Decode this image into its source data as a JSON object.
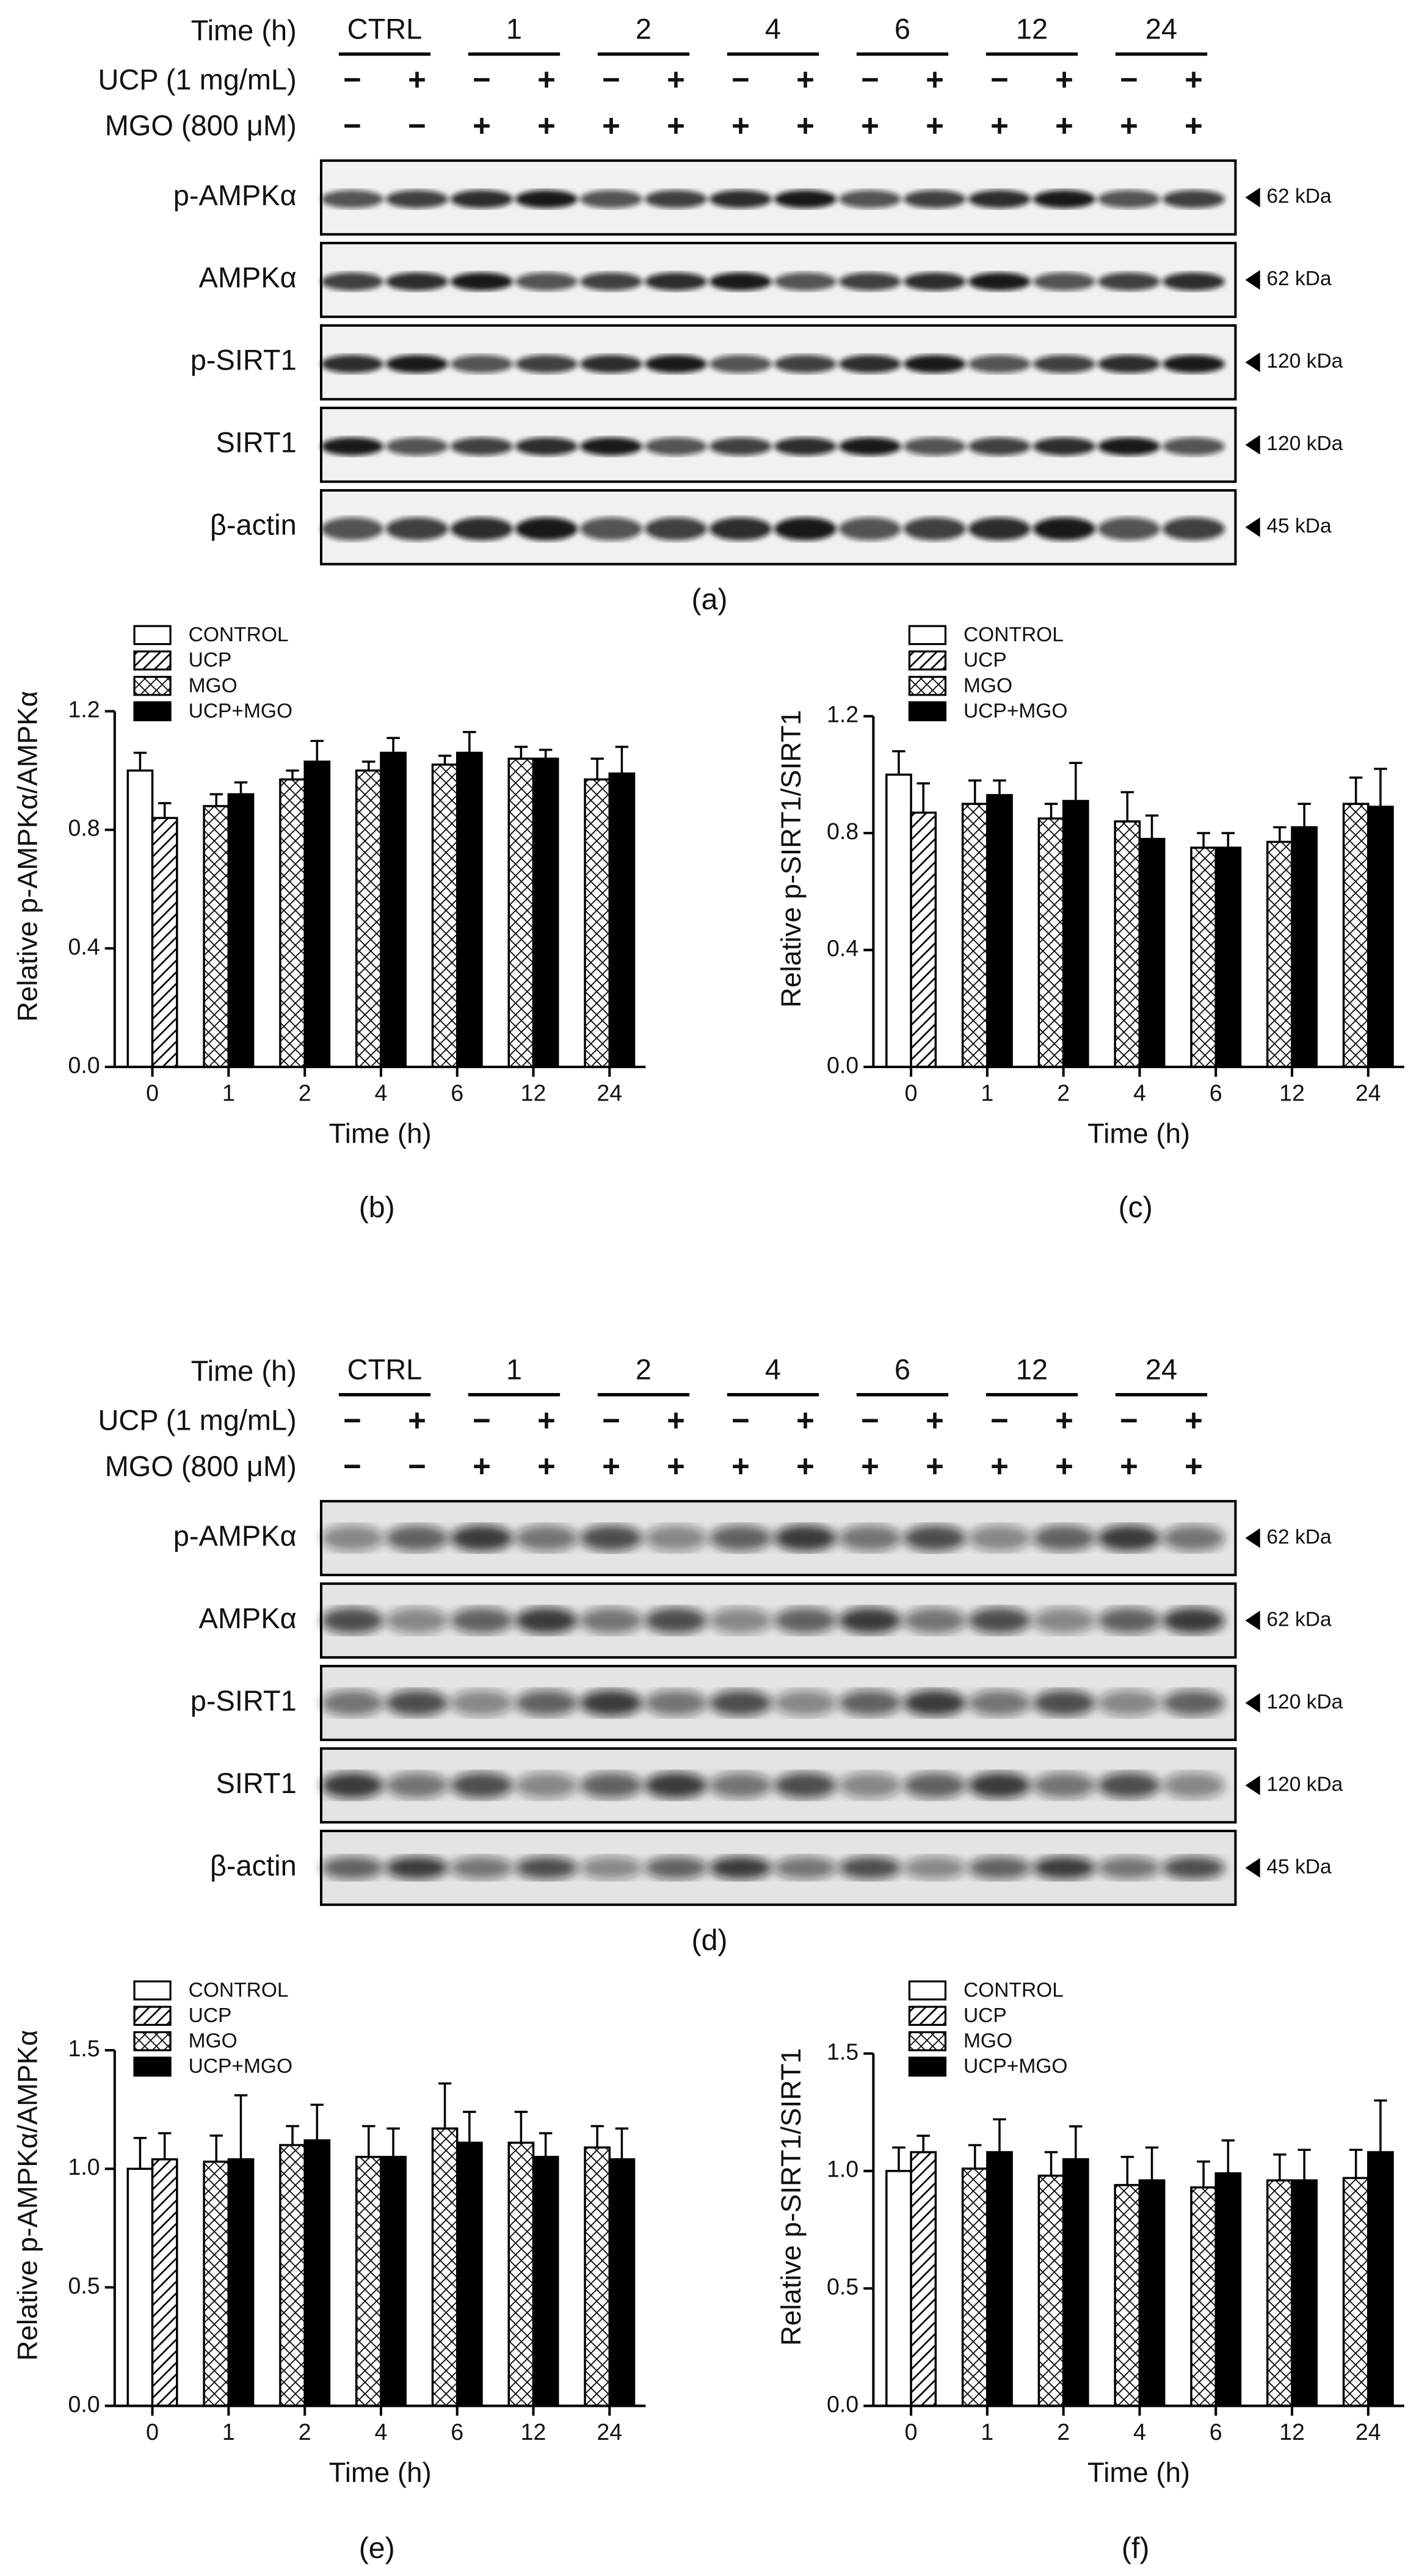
{
  "blots": [
    {
      "caption": "(a)",
      "time_label": "Time (h)",
      "groups": [
        "CTRL",
        "1",
        "2",
        "4",
        "6",
        "12",
        "24"
      ],
      "ucp_label": "UCP (1 mg/mL)",
      "ucp_signs": [
        "−",
        "+",
        "−",
        "+",
        "−",
        "+",
        "−",
        "+",
        "−",
        "+",
        "−",
        "+",
        "−",
        "+"
      ],
      "mgo_label": "MGO (800 μM)",
      "mgo_signs": [
        "−",
        "−",
        "+",
        "+",
        "+",
        "+",
        "+",
        "+",
        "+",
        "+",
        "+",
        "+",
        "+",
        "+"
      ],
      "rows": [
        {
          "protein": "p-AMPKα",
          "size": "62 kDa"
        },
        {
          "protein": "AMPKα",
          "size": "62 kDa"
        },
        {
          "protein": "p-SIRT1",
          "size": "120 kDa"
        },
        {
          "protein": "SIRT1",
          "size": "120 kDa"
        },
        {
          "protein": "β-actin",
          "size": "45 kDa"
        }
      ]
    },
    {
      "caption": "(d)",
      "time_label": "Time (h)",
      "groups": [
        "CTRL",
        "1",
        "2",
        "4",
        "6",
        "12",
        "24"
      ],
      "ucp_label": "UCP (1 mg/mL)",
      "ucp_signs": [
        "−",
        "+",
        "−",
        "+",
        "−",
        "+",
        "−",
        "+",
        "−",
        "+",
        "−",
        "+",
        "−",
        "+"
      ],
      "mgo_label": "MGO (800 μM)",
      "mgo_signs": [
        "−",
        "−",
        "+",
        "+",
        "+",
        "+",
        "+",
        "+",
        "+",
        "+",
        "+",
        "+",
        "+",
        "+"
      ],
      "rows": [
        {
          "protein": "p-AMPKα",
          "size": "62 kDa"
        },
        {
          "protein": "AMPKα",
          "size": "62 kDa"
        },
        {
          "protein": "p-SIRT1",
          "size": "120 kDa"
        },
        {
          "protein": "SIRT1",
          "size": "120 kDa"
        },
        {
          "protein": "β-actin",
          "size": "45 kDa"
        }
      ]
    }
  ],
  "chart_data": [
    {
      "type": "bar",
      "caption": "(b)",
      "x_label": "Time (h)",
      "y_label": "Relative p-AMPKα/AMPKα",
      "categories": [
        "0",
        "1",
        "2",
        "4",
        "6",
        "12",
        "24"
      ],
      "ylim": [
        0,
        1.2
      ],
      "yticks": [
        {
          "value": 0,
          "label": "0.0"
        },
        0.4,
        0.8,
        1.2
      ],
      "series": [
        {
          "name": "CONTROL",
          "color": "#ffffff",
          "pattern": "none",
          "values": [
            1.0,
            null,
            null,
            null,
            null,
            null,
            null
          ],
          "errors": [
            0.06,
            null,
            null,
            null,
            null,
            null,
            null
          ]
        },
        {
          "name": "UCP",
          "color": "#ffffff",
          "pattern": "diagonal",
          "values": [
            0.84,
            null,
            null,
            null,
            null,
            null,
            null
          ],
          "errors": [
            0.05,
            null,
            null,
            null,
            null,
            null,
            null
          ]
        },
        {
          "name": "MGO",
          "color": "#ffffff",
          "pattern": "crosshatch",
          "values": [
            null,
            0.88,
            0.97,
            1.0,
            1.02,
            1.04,
            0.97
          ],
          "errors": [
            null,
            0.04,
            0.03,
            0.03,
            0.03,
            0.04,
            0.07
          ]
        },
        {
          "name": "UCP+MGO",
          "color": "#000000",
          "pattern": "none",
          "values": [
            null,
            0.92,
            1.03,
            1.06,
            1.06,
            1.04,
            0.99
          ],
          "errors": [
            null,
            0.04,
            0.07,
            0.05,
            0.07,
            0.03,
            0.09
          ]
        }
      ]
    },
    {
      "type": "bar",
      "caption": "(c)",
      "x_label": "Time (h)",
      "y_label": "Relative p-SIRT1/SIRT1",
      "categories": [
        "0",
        "1",
        "2",
        "4",
        "6",
        "12",
        "24"
      ],
      "ylim": [
        0,
        1.2
      ],
      "yticks": [
        {
          "value": 0,
          "label": "0.0"
        },
        0.4,
        0.8,
        1.2
      ],
      "series": [
        {
          "name": "CONTROL",
          "color": "#ffffff",
          "pattern": "none",
          "values": [
            1.0,
            null,
            null,
            null,
            null,
            null,
            null
          ],
          "errors": [
            0.08,
            null,
            null,
            null,
            null,
            null,
            null
          ]
        },
        {
          "name": "UCP",
          "color": "#ffffff",
          "pattern": "diagonal",
          "values": [
            0.87,
            null,
            null,
            null,
            null,
            null,
            null
          ],
          "errors": [
            0.1,
            null,
            null,
            null,
            null,
            null,
            null
          ]
        },
        {
          "name": "MGO",
          "color": "#ffffff",
          "pattern": "crosshatch",
          "values": [
            null,
            0.9,
            0.85,
            0.84,
            0.75,
            0.77,
            0.9
          ],
          "errors": [
            null,
            0.08,
            0.05,
            0.1,
            0.05,
            0.05,
            0.09
          ]
        },
        {
          "name": "UCP+MGO",
          "color": "#000000",
          "pattern": "none",
          "values": [
            null,
            0.93,
            0.91,
            0.78,
            0.75,
            0.82,
            0.89
          ],
          "errors": [
            null,
            0.05,
            0.13,
            0.08,
            0.05,
            0.08,
            0.13
          ]
        }
      ]
    },
    {
      "type": "bar",
      "caption": "(e)",
      "x_label": "Time (h)",
      "y_label": "Relative p-AMPKα/AMPKα",
      "categories": [
        "0",
        "1",
        "2",
        "4",
        "6",
        "12",
        "24"
      ],
      "ylim": [
        0,
        1.5
      ],
      "yticks": [
        {
          "value": 0,
          "label": "0.0"
        },
        0.5,
        {
          "value": 1,
          "label": "1.0"
        },
        1.5
      ],
      "series": [
        {
          "name": "CONTROL",
          "color": "#ffffff",
          "pattern": "none",
          "values": [
            1.0,
            null,
            null,
            null,
            null,
            null,
            null
          ],
          "errors": [
            0.13,
            null,
            null,
            null,
            null,
            null,
            null
          ]
        },
        {
          "name": "UCP",
          "color": "#ffffff",
          "pattern": "diagonal",
          "values": [
            1.04,
            null,
            null,
            null,
            null,
            null,
            null
          ],
          "errors": [
            0.11,
            null,
            null,
            null,
            null,
            null,
            null
          ]
        },
        {
          "name": "MGO",
          "color": "#ffffff",
          "pattern": "crosshatch",
          "values": [
            null,
            1.03,
            1.1,
            1.05,
            1.17,
            1.11,
            1.09
          ],
          "errors": [
            null,
            0.11,
            0.08,
            0.13,
            0.19,
            0.13,
            0.09
          ]
        },
        {
          "name": "UCP+MGO",
          "color": "#000000",
          "pattern": "none",
          "values": [
            null,
            1.04,
            1.12,
            1.05,
            1.11,
            1.05,
            1.04
          ],
          "errors": [
            null,
            0.27,
            0.15,
            0.12,
            0.13,
            0.1,
            0.13
          ]
        }
      ]
    },
    {
      "type": "bar",
      "caption": "(f)",
      "x_label": "Time (h)",
      "y_label": "Relative p-SIRT1/SIRT1",
      "categories": [
        "0",
        "1",
        "2",
        "4",
        "6",
        "12",
        "24"
      ],
      "ylim": [
        0,
        1.5
      ],
      "yticks": [
        {
          "value": 0,
          "label": "0.0"
        },
        0.5,
        {
          "value": 1,
          "label": "1.0"
        },
        1.5
      ],
      "series": [
        {
          "name": "CONTROL",
          "color": "#ffffff",
          "pattern": "none",
          "values": [
            1.0,
            null,
            null,
            null,
            null,
            null,
            null
          ],
          "errors": [
            0.1,
            null,
            null,
            null,
            null,
            null,
            null
          ]
        },
        {
          "name": "UCP",
          "color": "#ffffff",
          "pattern": "diagonal",
          "values": [
            1.08,
            null,
            null,
            null,
            null,
            null,
            null
          ],
          "errors": [
            0.07,
            null,
            null,
            null,
            null,
            null,
            null
          ]
        },
        {
          "name": "MGO",
          "color": "#ffffff",
          "pattern": "crosshatch",
          "values": [
            null,
            1.01,
            0.98,
            0.94,
            0.93,
            0.96,
            0.97
          ],
          "errors": [
            null,
            0.1,
            0.1,
            0.12,
            0.11,
            0.11,
            0.12
          ]
        },
        {
          "name": "UCP+MGO",
          "color": "#000000",
          "pattern": "none",
          "values": [
            null,
            1.08,
            1.05,
            0.96,
            0.99,
            0.96,
            1.08
          ],
          "errors": [
            null,
            0.14,
            0.14,
            0.14,
            0.14,
            0.13,
            0.22
          ]
        }
      ]
    }
  ]
}
